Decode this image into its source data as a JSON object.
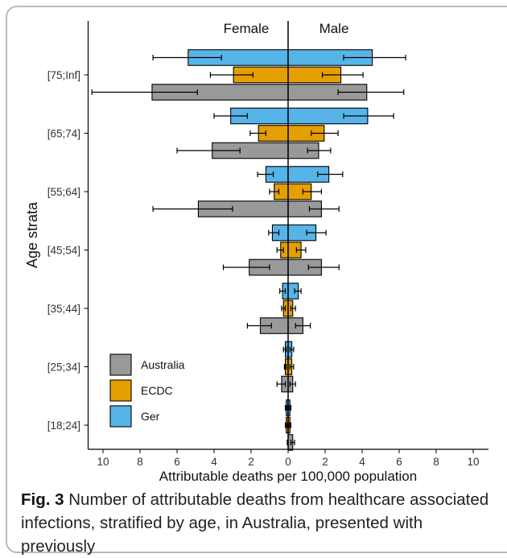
{
  "chart_data": {
    "type": "bar",
    "orientation": "horizontal",
    "layout": "population-pyramid",
    "ylabel": "Age strata",
    "xlabel": "Attributable deaths per 100,000 population",
    "side_labels": {
      "left": "Female",
      "right": "Male"
    },
    "categories": [
      "[75;Inf]",
      "[65;74]",
      "[55;64]",
      "[45;54]",
      "[35;44]",
      "[25;34]",
      "[18;24]"
    ],
    "x_ticks": [
      10,
      8,
      6,
      4,
      2,
      0,
      2,
      4,
      6,
      8,
      10
    ],
    "xlim": [
      -11,
      11
    ],
    "grid": false,
    "legend_position": "bottom-left",
    "series": [
      {
        "name": "Ger",
        "color": "#56b4e9",
        "female": [
          5.4,
          3.1,
          1.2,
          0.85,
          0.3,
          0.15,
          0.1
        ],
        "male": [
          4.55,
          4.3,
          2.2,
          1.5,
          0.55,
          0.2,
          0.1
        ],
        "female_ci": [
          [
            3.6,
            7.3
          ],
          [
            2.2,
            4.0
          ],
          [
            0.8,
            1.65
          ],
          [
            0.5,
            1.05
          ],
          [
            0.15,
            0.45
          ],
          [
            0.1,
            0.25
          ],
          [
            0.05,
            0.15
          ]
        ],
        "male_ci": [
          [
            3.0,
            6.35
          ],
          [
            3.0,
            5.7
          ],
          [
            1.6,
            2.95
          ],
          [
            1.0,
            2.05
          ],
          [
            0.35,
            0.7
          ],
          [
            0.1,
            0.3
          ],
          [
            0.05,
            0.15
          ]
        ]
      },
      {
        "name": "ECDC",
        "color": "#e69f00",
        "female": [
          2.95,
          1.6,
          0.75,
          0.4,
          0.25,
          0.15,
          0.1
        ],
        "male": [
          2.85,
          1.95,
          1.25,
          0.7,
          0.25,
          0.2,
          0.1
        ],
        "female_ci": [
          [
            1.9,
            4.2
          ],
          [
            1.2,
            2.05
          ],
          [
            0.5,
            1.0
          ],
          [
            0.25,
            0.6
          ],
          [
            0.15,
            0.35
          ],
          [
            0.1,
            0.2
          ],
          [
            0.05,
            0.15
          ]
        ],
        "male_ci": [
          [
            1.85,
            4.05
          ],
          [
            1.25,
            2.7
          ],
          [
            0.8,
            1.8
          ],
          [
            0.45,
            0.95
          ],
          [
            0.15,
            0.4
          ],
          [
            0.1,
            0.3
          ],
          [
            0.05,
            0.15
          ]
        ]
      },
      {
        "name": "Australia",
        "color": "#999999",
        "female": [
          7.35,
          4.1,
          4.85,
          2.1,
          1.5,
          0.35,
          0.0
        ],
        "male": [
          4.25,
          1.65,
          1.8,
          1.8,
          0.8,
          0.25,
          0.25
        ],
        "female_ci": [
          [
            4.9,
            10.6
          ],
          [
            2.6,
            6.0
          ],
          [
            3.0,
            7.3
          ],
          [
            1.0,
            3.5
          ],
          [
            0.9,
            2.2
          ],
          [
            0.15,
            0.6
          ],
          [
            0.0,
            0.05
          ]
        ],
        "male_ci": [
          [
            2.7,
            6.25
          ],
          [
            1.05,
            2.3
          ],
          [
            1.15,
            2.75
          ],
          [
            1.1,
            2.75
          ],
          [
            0.4,
            1.2
          ],
          [
            0.1,
            0.4
          ],
          [
            0.15,
            0.35
          ]
        ]
      }
    ],
    "legend": [
      {
        "name": "Australia",
        "color": "#999999"
      },
      {
        "name": "ECDC",
        "color": "#e69f00"
      },
      {
        "name": "Ger",
        "color": "#56b4e9"
      }
    ]
  },
  "caption": {
    "label": "Fig. 3",
    "text": "Number of attributable deaths from healthcare associated infections, stratified by age, in Australia, presented with previously"
  }
}
